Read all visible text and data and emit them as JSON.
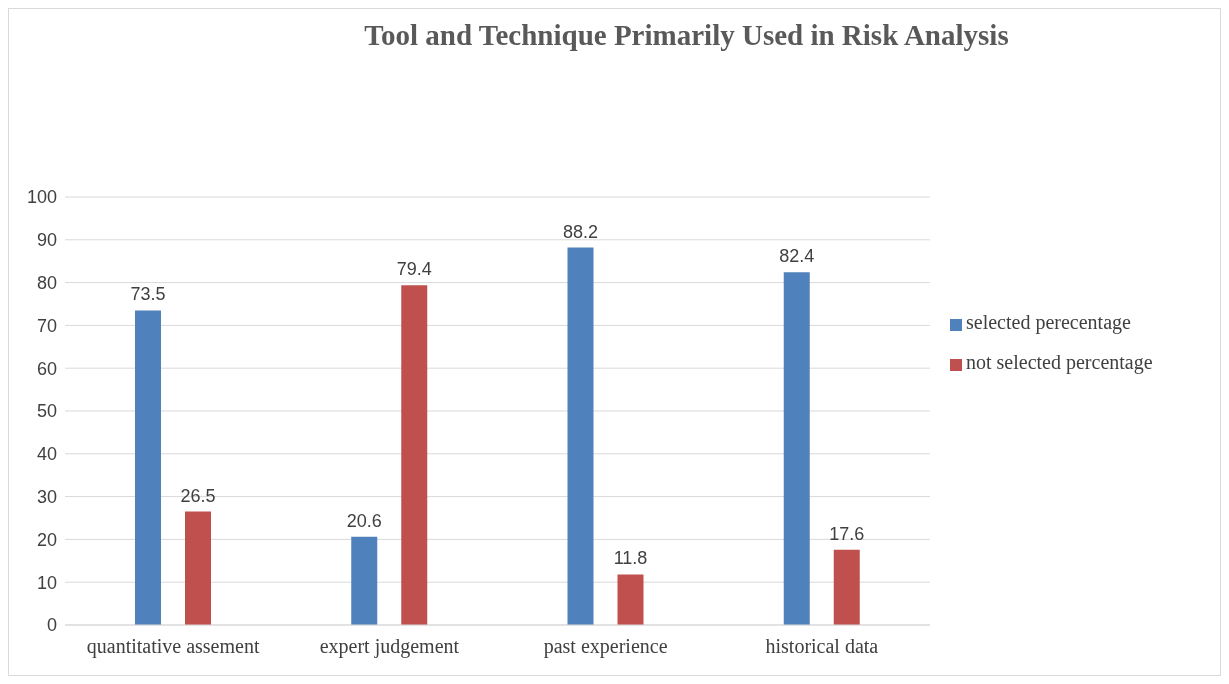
{
  "chart_data": {
    "type": "bar",
    "title": "Tool and Technique Primarily Used in Risk Analysis",
    "categories": [
      "quantitative assement",
      "expert judgement",
      "past experience",
      "historical data"
    ],
    "series": [
      {
        "name": "selected perecentage",
        "color": "#4f81bd",
        "values": [
          73.5,
          20.6,
          88.2,
          82.4
        ]
      },
      {
        "name": "not selected percentage",
        "color": "#c0504d",
        "values": [
          26.5,
          79.4,
          11.8,
          17.6
        ]
      }
    ],
    "ylim": [
      0,
      100
    ],
    "yticks": [
      0,
      10,
      20,
      30,
      40,
      50,
      60,
      70,
      80,
      90,
      100
    ],
    "grid": "y",
    "legend": "right",
    "data_labels": true
  }
}
